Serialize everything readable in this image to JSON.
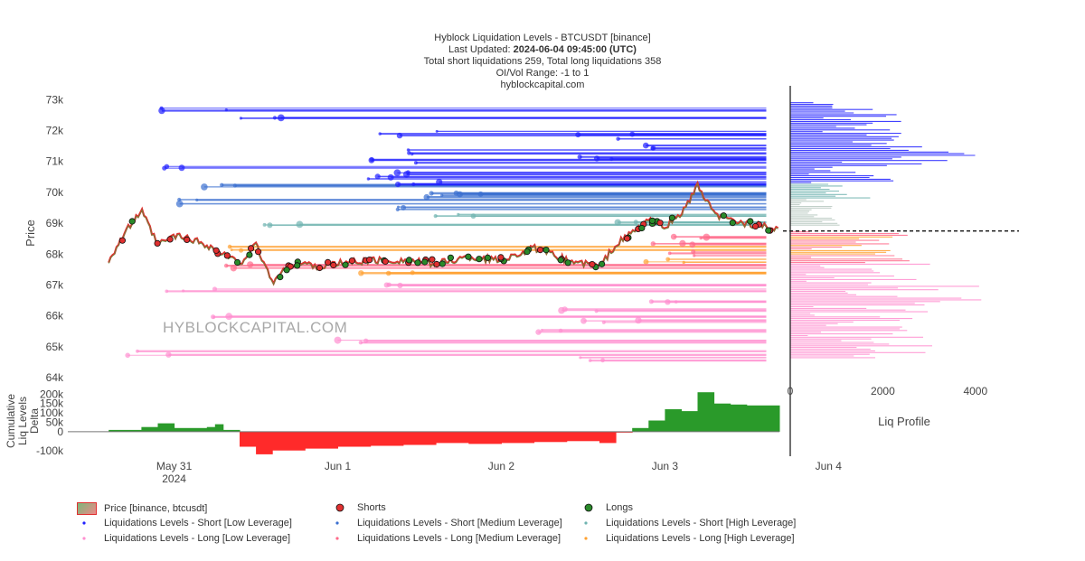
{
  "header": {
    "title": "Hyblock Liquidation Levels - BTCUSDT [binance]",
    "updated_label": "Last Updated: ",
    "updated_value": "2024-06-04 09:45:00 (UTC)",
    "totals": "Total short liquidations 259, Total long liquidations 358",
    "range": "OI/Vol Range: -1 to 1",
    "site": "hyblockcapital.com"
  },
  "watermark": "HYBLOCKCAPITAL.COM",
  "colors": {
    "short_low": "#2020ff",
    "short_medium": "#3a6fd0",
    "short_high": "#6fb3b0",
    "long_low": "#ff8fd0",
    "long_medium": "#ff6a8a",
    "long_high": "#ffa030",
    "price": "#e03030",
    "shorts_marker": "#e03030",
    "longs_marker": "#2a8a2a",
    "delta_pos": "#2a9a2a",
    "delta_neg": "#ff2a2a"
  },
  "chart_data": [
    {
      "type": "line",
      "title": "Hyblock Liquidation Levels - BTCUSDT [binance]",
      "ylabel": "Price",
      "ylim": [
        63800,
        73300
      ],
      "y_ticks": [
        "73k",
        "72k",
        "71k",
        "70k",
        "69k",
        "68k",
        "67k",
        "66k",
        "65k",
        "64k"
      ],
      "y_tick_values": [
        73000,
        72000,
        71000,
        70000,
        69000,
        68000,
        67000,
        66000,
        65000,
        64000
      ],
      "x_range_days": [
        30.35,
        34.7
      ],
      "x_ticks": [
        "May 31",
        "Jun 1",
        "Jun 2",
        "Jun 3",
        "Jun 4"
      ],
      "x_tick_year": "2024",
      "x_tick_values": [
        31,
        32,
        33,
        34,
        35
      ],
      "price_series": {
        "name": "Price [binance, btcusdt]",
        "t": [
          30.6,
          30.7,
          30.8,
          30.9,
          31.0,
          31.1,
          31.2,
          31.3,
          31.4,
          31.5,
          31.6,
          31.7,
          31.8,
          31.9,
          32.0,
          32.2,
          32.4,
          32.6,
          32.8,
          33.0,
          33.2,
          33.4,
          33.6,
          33.7,
          33.8,
          33.9,
          34.0,
          34.1,
          34.2,
          34.3,
          34.4,
          34.5,
          34.6,
          34.7
        ],
        "price": [
          67800,
          68700,
          69400,
          68300,
          68600,
          68500,
          68300,
          68000,
          67700,
          68300,
          67100,
          67600,
          67700,
          67600,
          67700,
          67800,
          67800,
          67700,
          67900,
          67800,
          68200,
          67800,
          67600,
          68300,
          68700,
          69100,
          68900,
          69300,
          70200,
          69300,
          69100,
          69000,
          68900,
          68750
        ]
      },
      "liquidation_levels": {
        "short_low": [
          71900,
          71800,
          71500,
          71300,
          71100,
          71000,
          70800,
          70600,
          70500,
          70300,
          72700,
          72400
        ],
        "short_medium": [
          70200,
          70000,
          69900,
          69700,
          69500
        ],
        "short_high": [
          69300,
          69100,
          68900
        ],
        "long_medium": [
          68500,
          68300,
          68000,
          67600
        ],
        "long_high": [
          68200,
          67800,
          67400
        ],
        "long_low": [
          67000,
          66800,
          66500,
          66200,
          66000,
          65800,
          65500,
          65200,
          64800,
          64600
        ]
      },
      "current_price": 68750
    },
    {
      "type": "area",
      "title": "Cumulative Liq Levels Delta",
      "ylabel": "Cumulative Liq Levels Delta",
      "ylim": [
        -130000,
        240000
      ],
      "y_ticks": [
        "200k",
        "150k",
        "100k",
        "50k",
        "0",
        "-100k"
      ],
      "y_tick_values": [
        200000,
        150000,
        100000,
        50000,
        0,
        -100000
      ],
      "t": [
        30.6,
        30.8,
        30.9,
        31.0,
        31.2,
        31.25,
        31.3,
        31.4,
        31.5,
        31.6,
        31.8,
        32.0,
        32.2,
        32.4,
        32.6,
        32.8,
        33.0,
        33.2,
        33.4,
        33.6,
        33.7,
        33.8,
        33.9,
        34.0,
        34.1,
        34.2,
        34.3,
        34.4,
        34.5,
        34.7
      ],
      "delta": [
        10000,
        25000,
        45000,
        20000,
        25000,
        40000,
        10000,
        -80000,
        -120000,
        -100000,
        -90000,
        -80000,
        -75000,
        -70000,
        -60000,
        -65000,
        -60000,
        -55000,
        -50000,
        -60000,
        -5000,
        20000,
        60000,
        120000,
        110000,
        210000,
        150000,
        145000,
        140000,
        135000
      ]
    },
    {
      "type": "bar",
      "title": "Liq Profile",
      "xlabel": "Liq Profile",
      "xlim": [
        0,
        5000
      ],
      "x_ticks": [
        "0",
        "2000",
        "4000"
      ],
      "x_tick_values": [
        0,
        2000,
        4000
      ]
    }
  ],
  "legend": [
    {
      "label": "Price [binance, btcusdt]",
      "kind": "price"
    },
    {
      "label": "Shorts",
      "kind": "shorts"
    },
    {
      "label": "Longs",
      "kind": "longs"
    },
    {
      "label": "Liquidations Levels - Short [Low Leverage]",
      "kind": "short_low"
    },
    {
      "label": "Liquidations Levels - Short [Medium Leverage]",
      "kind": "short_medium"
    },
    {
      "label": "Liquidations Levels - Short [High Leverage]",
      "kind": "short_high"
    },
    {
      "label": "Liquidations Levels - Long [Low Leverage]",
      "kind": "long_low"
    },
    {
      "label": "Liquidations Levels - Long [Medium Leverage]",
      "kind": "long_medium"
    },
    {
      "label": "Liquidations Levels - Long [High Leverage]",
      "kind": "long_high"
    }
  ]
}
